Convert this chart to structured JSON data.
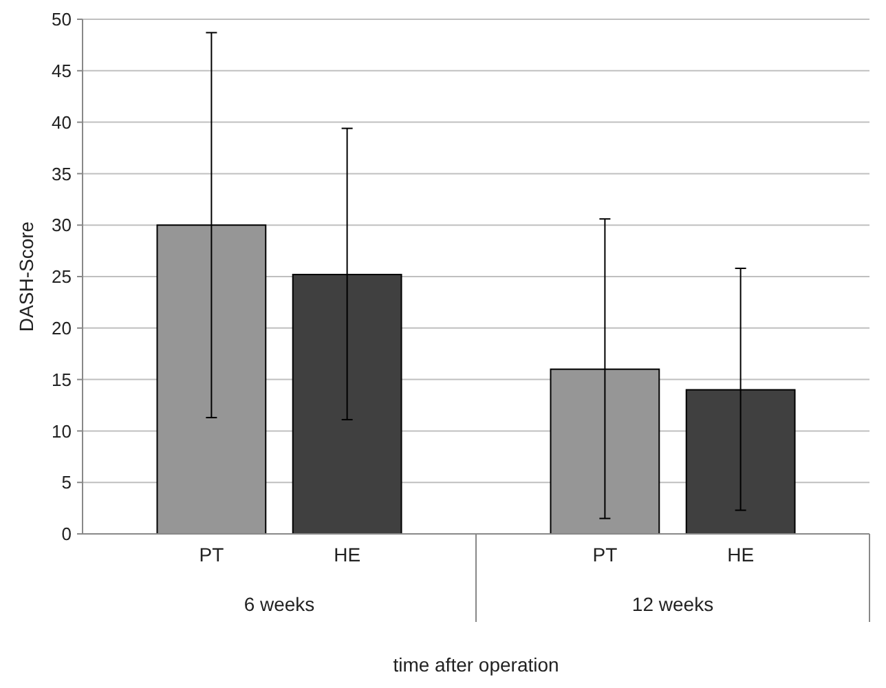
{
  "chart_data": {
    "type": "bar",
    "xlabel": "time after operation",
    "ylabel": "DASH-Score",
    "categories": [
      "6 weeks",
      "12 weeks"
    ],
    "series": [
      {
        "name": "PT",
        "color": "#969696",
        "values": [
          30,
          16
        ],
        "errors": [
          [
            11.3,
            48.7
          ],
          [
            1.5,
            30.6
          ]
        ]
      },
      {
        "name": "HE",
        "color": "#404040",
        "values": [
          25.2,
          14
        ],
        "errors": [
          [
            11.1,
            39.4
          ],
          [
            2.3,
            25.8
          ]
        ]
      }
    ],
    "ylim": [
      0,
      50
    ],
    "yticks": [
      0,
      5,
      10,
      15,
      20,
      25,
      30,
      35,
      40,
      45,
      50
    ],
    "grid": "y"
  }
}
